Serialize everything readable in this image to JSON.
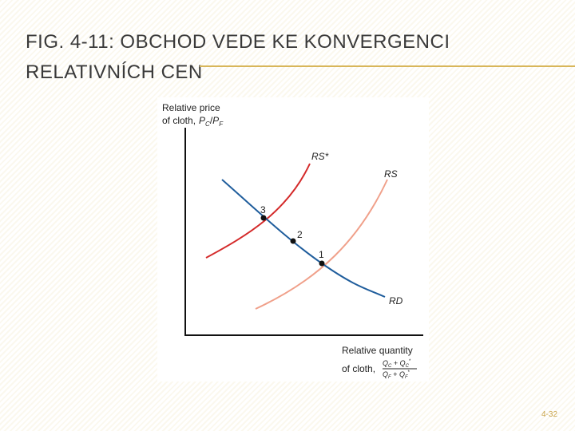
{
  "header": {
    "title_lines": [
      "FIG. 4-11: OBCHOD VEDE KE KONVERGENCI",
      "RELATIVNÍCH CEN"
    ]
  },
  "diagram": {
    "y_axis_label": {
      "line1": "Relative price",
      "line2": "of cloth,",
      "formula": [
        "P",
        "C",
        "/",
        "P",
        "F"
      ]
    },
    "x_axis_label": {
      "line1": "Relative quantity",
      "line2": "of cloth,",
      "numerator": [
        "Q",
        "C",
        " + ",
        "Q",
        "C",
        "*"
      ],
      "denominator": [
        "Q",
        "F",
        " + ",
        "Q",
        "F",
        "*"
      ]
    },
    "curves": [
      {
        "label": "RS*"
      },
      {
        "label": "RS"
      },
      {
        "label": "RD"
      }
    ],
    "points": [
      {
        "label": "3"
      },
      {
        "label": "2"
      },
      {
        "label": "1"
      }
    ]
  },
  "footer": {
    "page_number": "4-32"
  }
}
